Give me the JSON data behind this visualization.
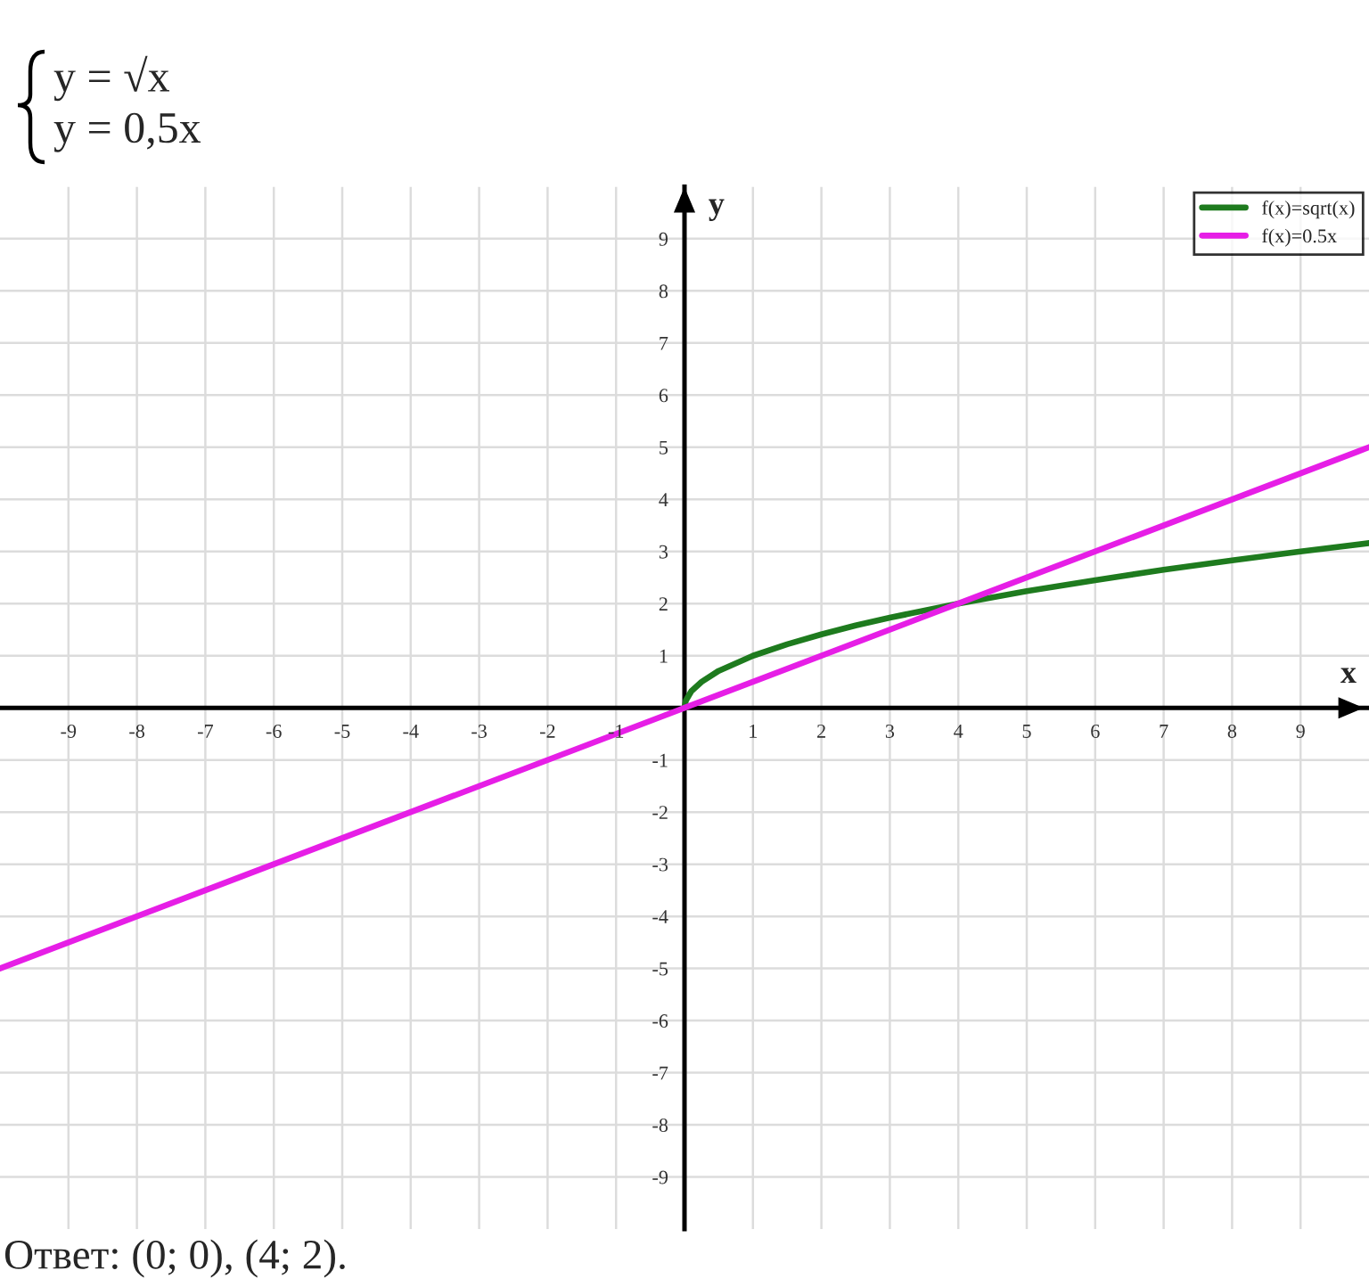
{
  "chart_data": {
    "type": "line",
    "title": "y = √x",
    "subtitle": "y = 0,5x",
    "xlabel": "x",
    "ylabel": "y",
    "annotations": [
      "Ответ: (0; 0), (4; 2)."
    ],
    "series": [
      {
        "name": "f(x)=sqrt(x)",
        "color": "#1e7b1e",
        "x": [
          0,
          0.02,
          0.1,
          0.25,
          0.5,
          1,
          1.5,
          2,
          2.5,
          3,
          4,
          5,
          6,
          7,
          8,
          9,
          10
        ],
        "values": [
          0,
          0.14,
          0.32,
          0.5,
          0.71,
          1,
          1.22,
          1.41,
          1.58,
          1.73,
          2,
          2.24,
          2.45,
          2.65,
          2.83,
          3,
          3.16
        ]
      },
      {
        "name": "f(x)=0.5x",
        "color": "#e61ee6",
        "x": [
          -10,
          0,
          4,
          10
        ],
        "values": [
          -5,
          0,
          2,
          5
        ]
      }
    ],
    "xlim": [
      -10,
      10
    ],
    "ylim": [
      -10,
      10
    ],
    "xticks": [
      -9,
      -8,
      -7,
      -6,
      -5,
      -4,
      -3,
      -2,
      -1,
      1,
      2,
      3,
      4,
      5,
      6,
      7,
      8,
      9
    ],
    "yticks": [
      -9,
      -8,
      -7,
      -6,
      -5,
      -4,
      -3,
      -2,
      -1,
      1,
      2,
      3,
      4,
      5,
      6,
      7,
      8,
      9
    ],
    "grid": true,
    "legend": "top right",
    "line_style": "solid"
  }
}
